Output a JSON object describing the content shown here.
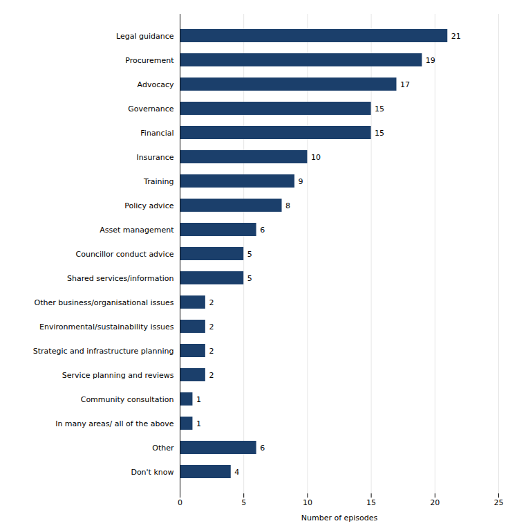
{
  "chart_data": {
    "type": "bar",
    "orientation": "horizontal",
    "categories": [
      "Don't know",
      "Other",
      "In many areas/ all of the above",
      "Community consultation",
      "Service planning and reviews",
      "Strategic and infrastructure planning",
      "Environmental/sustainability issues",
      "Other business/organisational issues",
      "Shared services/information",
      "Councillor conduct advice",
      "Asset management",
      "Policy advice",
      "Training",
      "Insurance",
      "Financial",
      "Governance",
      "Advocacy",
      "Procurement",
      "Legal guidance"
    ],
    "values": [
      4,
      6,
      1,
      1,
      2,
      2,
      2,
      2,
      5,
      5,
      6,
      8,
      9,
      10,
      15,
      15,
      17,
      19,
      21
    ],
    "color": "#1b3f6b",
    "xlabel": "Number of episodes",
    "xlim": [
      0,
      25
    ],
    "xticks": [
      0,
      5,
      10,
      15,
      20,
      25
    ],
    "grid": true,
    "data_labels": true
  }
}
